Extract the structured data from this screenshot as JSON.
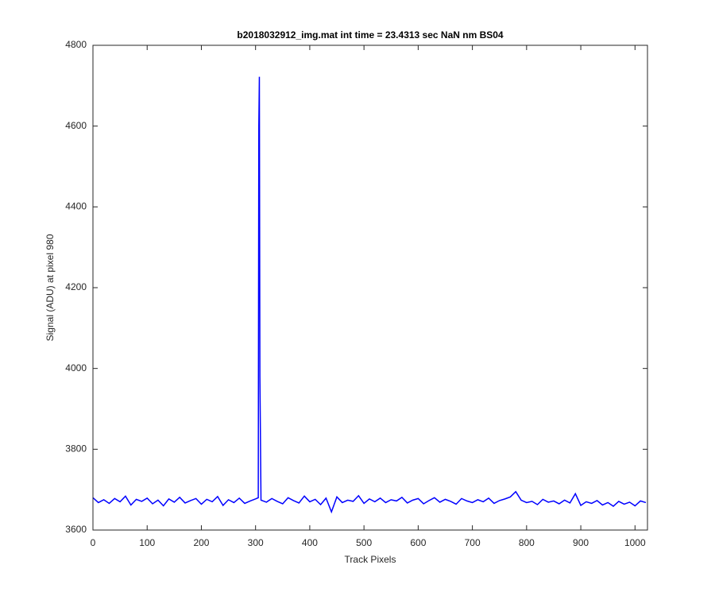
{
  "chart_data": {
    "type": "line",
    "title": "b2018032912_img.mat int time = 23.4313 sec  NaN nm BS04",
    "x_label": "Track Pixels",
    "y_label": "Signal (ADU) at pixel 980",
    "x": [
      0,
      10,
      20,
      30,
      40,
      50,
      60,
      70,
      80,
      90,
      100,
      110,
      120,
      130,
      140,
      150,
      160,
      170,
      180,
      190,
      200,
      210,
      220,
      230,
      240,
      250,
      260,
      270,
      280,
      290,
      300,
      305,
      306,
      307,
      308,
      310,
      320,
      330,
      340,
      350,
      360,
      370,
      380,
      390,
      400,
      410,
      420,
      430,
      440,
      450,
      460,
      470,
      480,
      490,
      500,
      510,
      520,
      530,
      540,
      550,
      560,
      570,
      580,
      590,
      600,
      610,
      620,
      630,
      640,
      650,
      660,
      670,
      680,
      690,
      700,
      710,
      720,
      730,
      740,
      750,
      760,
      770,
      780,
      790,
      800,
      810,
      820,
      830,
      840,
      850,
      860,
      870,
      880,
      890,
      900,
      910,
      920,
      930,
      940,
      950,
      960,
      970,
      980,
      990,
      1000,
      1010,
      1020
    ],
    "series": [
      {
        "color": "#0000ff",
        "values": [
          3680,
          3668,
          3675,
          3666,
          3678,
          3670,
          3684,
          3662,
          3676,
          3671,
          3679,
          3665,
          3674,
          3660,
          3677,
          3669,
          3681,
          3667,
          3673,
          3678,
          3664,
          3676,
          3670,
          3683,
          3661,
          3675,
          3668,
          3679,
          3666,
          3672,
          3677,
          3680,
          4600,
          4722,
          3980,
          3674,
          3669,
          3678,
          3671,
          3665,
          3680,
          3673,
          3667,
          3684,
          3670,
          3676,
          3663,
          3679,
          3645,
          3682,
          3668,
          3674,
          3671,
          3685,
          3666,
          3677,
          3670,
          3679,
          3668,
          3675,
          3672,
          3681,
          3667,
          3674,
          3678,
          3665,
          3673,
          3680,
          3669,
          3676,
          3671,
          3664,
          3678,
          3672,
          3668,
          3675,
          3670,
          3679,
          3666,
          3673,
          3677,
          3682,
          3695,
          3674,
          3668,
          3671,
          3663,
          3676,
          3669,
          3672,
          3665,
          3674,
          3667,
          3690,
          3661,
          3670,
          3666,
          3673,
          3662,
          3668,
          3659,
          3671,
          3664,
          3669,
          3660,
          3672,
          3668
        ]
      }
    ],
    "xlim": [
      0,
      1023
    ],
    "ylim": [
      3600,
      4800
    ],
    "xticks": [
      0,
      100,
      200,
      300,
      400,
      500,
      600,
      700,
      800,
      900,
      1000
    ],
    "yticks": [
      3600,
      3800,
      4000,
      4200,
      4400,
      4600,
      4800
    ],
    "grid": false
  }
}
